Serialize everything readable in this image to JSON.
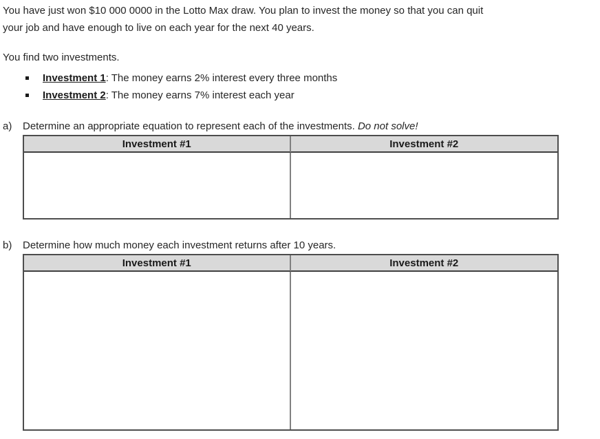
{
  "doc": {
    "intro": {
      "line1": "You have just won $10 000 0000 in the Lotto Max draw. You plan to invest the money so that you can quit",
      "line2": "your job and have enough to live on each year for the next 40 years."
    },
    "find_text": "You find two investments.",
    "bullets": [
      {
        "label": "Investment 1",
        "text": ": The money earns 2% interest every three months"
      },
      {
        "label": "Investment 2",
        "text": ": The money earns 7% interest each year"
      }
    ],
    "part_a": {
      "label": "a)",
      "text": "Determine an appropriate equation to represent each of the investments. ",
      "italic": "Do not solve!"
    },
    "part_b": {
      "label": "b)",
      "text": "Determine how much money each investment returns after 10 years."
    },
    "table_headers": [
      "Investment #1",
      "Investment #2"
    ],
    "colors": {
      "header_bg": "#d9d9d9",
      "outer_border": "#4d4d4d",
      "inner_border": "#808080",
      "text": "#262626"
    }
  }
}
